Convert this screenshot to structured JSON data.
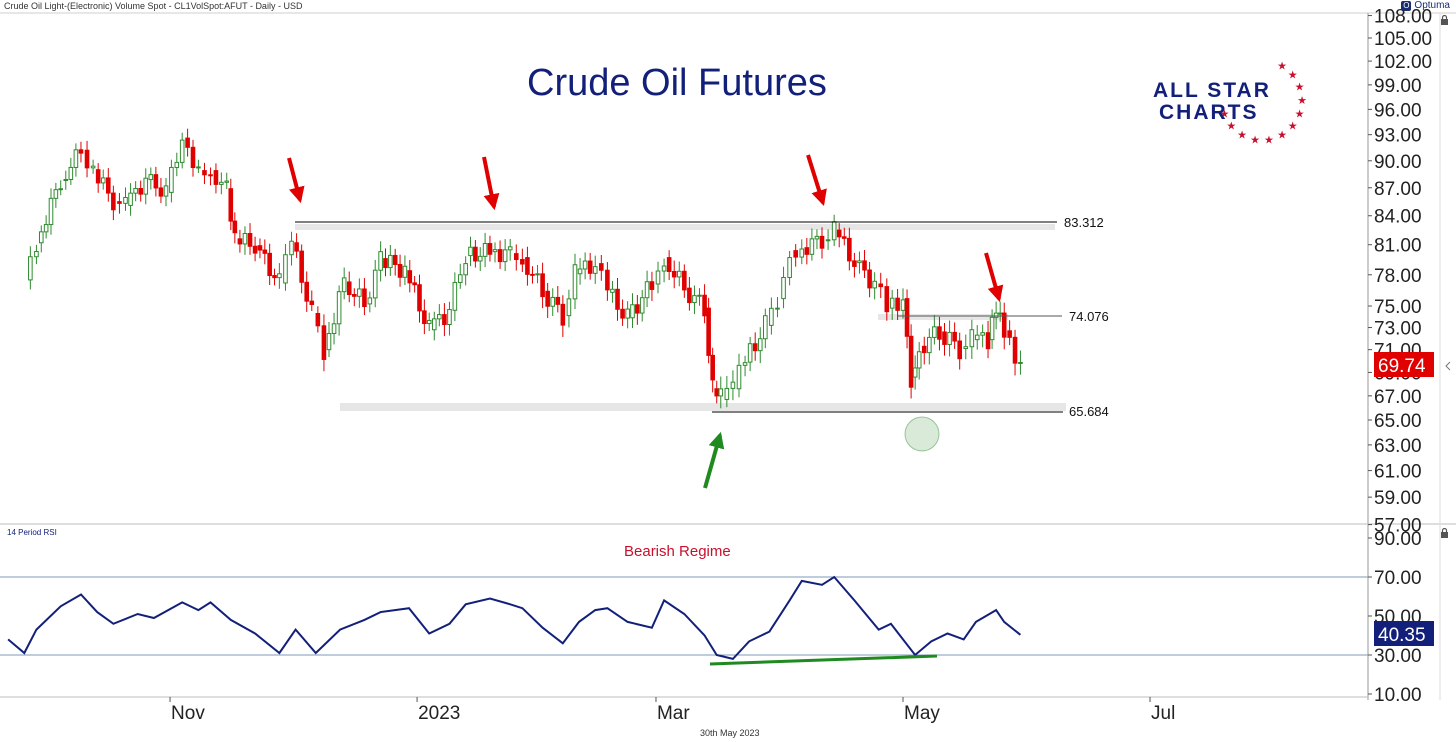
{
  "header": {
    "instrument": "Crude Oil Light-(Electronic) Volume Spot - CL1VolSpot:AFUT - Daily - USD",
    "brand": "Optuma"
  },
  "footer": {
    "date": "30th May 2023"
  },
  "logo": {
    "line1": "ALL STAR",
    "line2": "CHARTS",
    "star_color": "#c8102e"
  },
  "colors": {
    "up": "#2e8b2e",
    "down": "#e00000",
    "rsi_line": "#13207a",
    "arrow_red": "#e00000",
    "arrow_green": "#1f8a1f",
    "price_badge": "#e00000",
    "rsi_badge": "#13207a"
  },
  "chart_data": [
    {
      "type": "candlestick",
      "title": "Crude Oil Futures",
      "y_ticks": [
        "108.00",
        "105.00",
        "102.00",
        "99.00",
        "96.00",
        "93.00",
        "90.00",
        "87.00",
        "84.00",
        "81.00",
        "78.00",
        "75.00",
        "73.00",
        "71.00",
        "69.00",
        "67.00",
        "65.00",
        "63.00",
        "61.00",
        "59.00",
        "57.00"
      ],
      "y_scale": "log",
      "ylim": [
        57,
        108
      ],
      "x_ticks": [
        "Nov",
        "2023",
        "Mar",
        "May",
        "Jul"
      ],
      "last_price": "69.74",
      "levels": [
        {
          "label": "83.312",
          "value": 83.312
        },
        {
          "label": "74.076",
          "value": 74.076
        },
        {
          "label": "65.684",
          "value": 65.684
        }
      ],
      "approx_close_path": [
        [
          "2022-09-26",
          77.5
        ],
        [
          "2022-09-29",
          81.2
        ],
        [
          "2022-10-05",
          87.8
        ],
        [
          "2022-10-10",
          91.2
        ],
        [
          "2022-10-13",
          89.0
        ],
        [
          "2022-10-18",
          85.5
        ],
        [
          "2022-10-21",
          85.1
        ],
        [
          "2022-10-26",
          87.9
        ],
        [
          "2022-10-31",
          86.5
        ],
        [
          "2022-11-04",
          92.6
        ],
        [
          "2022-11-08",
          88.9
        ],
        [
          "2022-11-11",
          88.9
        ],
        [
          "2022-11-15",
          86.9
        ],
        [
          "2022-11-17",
          81.6
        ],
        [
          "2022-11-22",
          80.9
        ],
        [
          "2022-11-28",
          77.2
        ],
        [
          "2022-12-01",
          81.2
        ],
        [
          "2022-12-06",
          74.3
        ],
        [
          "2022-12-09",
          71.0
        ],
        [
          "2022-12-14",
          77.3
        ],
        [
          "2022-12-19",
          75.2
        ],
        [
          "2022-12-23",
          79.6
        ],
        [
          "2022-12-29",
          78.4
        ],
        [
          "2023-01-04",
          72.8
        ],
        [
          "2023-01-09",
          74.6
        ],
        [
          "2023-01-13",
          79.9
        ],
        [
          "2023-01-19",
          80.3
        ],
        [
          "2023-01-24",
          80.1
        ],
        [
          "2023-01-27",
          79.7
        ],
        [
          "2023-02-01",
          76.4
        ],
        [
          "2023-02-06",
          74.1
        ],
        [
          "2023-02-09",
          78.1
        ],
        [
          "2023-02-14",
          79.1
        ],
        [
          "2023-02-17",
          76.3
        ],
        [
          "2023-02-22",
          73.9
        ],
        [
          "2023-02-28",
          77.1
        ],
        [
          "2023-03-03",
          79.7
        ],
        [
          "2023-03-08",
          76.7
        ],
        [
          "2023-03-13",
          74.8
        ],
        [
          "2023-03-15",
          67.6
        ],
        [
          "2023-03-17",
          66.7
        ],
        [
          "2023-03-20",
          67.6
        ],
        [
          "2023-03-23",
          69.9
        ],
        [
          "2023-03-28",
          73.2
        ],
        [
          "2023-03-31",
          75.7
        ],
        [
          "2023-04-03",
          80.4
        ],
        [
          "2023-04-06",
          80.7
        ],
        [
          "2023-04-11",
          81.5
        ],
        [
          "2023-04-14",
          82.5
        ],
        [
          "2023-04-19",
          79.2
        ],
        [
          "2023-04-24",
          77.1
        ],
        [
          "2023-04-27",
          74.8
        ],
        [
          "2023-05-01",
          75.7
        ],
        [
          "2023-05-03",
          68.6
        ],
        [
          "2023-05-05",
          71.3
        ],
        [
          "2023-05-10",
          72.6
        ],
        [
          "2023-05-15",
          71.1
        ],
        [
          "2023-05-18",
          71.9
        ],
        [
          "2023-05-22",
          71.9
        ],
        [
          "2023-05-24",
          74.3
        ],
        [
          "2023-05-26",
          72.7
        ],
        [
          "2023-05-30",
          69.7
        ]
      ]
    },
    {
      "type": "line",
      "title": "14 Period RSI",
      "annotation": "Bearish Regime",
      "y_ticks": [
        "90.00",
        "70.00",
        "50.00",
        "30.00",
        "10.00"
      ],
      "ylim": [
        10,
        90
      ],
      "reference_lines": [
        70,
        30
      ],
      "last_value": "40.35",
      "approx_values": [
        [
          "2022-09-22",
          38
        ],
        [
          "2022-09-26",
          31
        ],
        [
          "2022-09-29",
          43
        ],
        [
          "2022-10-05",
          55
        ],
        [
          "2022-10-10",
          61
        ],
        [
          "2022-10-14",
          52
        ],
        [
          "2022-10-18",
          46
        ],
        [
          "2022-10-24",
          51
        ],
        [
          "2022-10-28",
          49
        ],
        [
          "2022-11-04",
          57
        ],
        [
          "2022-11-08",
          53
        ],
        [
          "2022-11-11",
          57
        ],
        [
          "2022-11-16",
          48
        ],
        [
          "2022-11-22",
          41
        ],
        [
          "2022-11-28",
          31
        ],
        [
          "2022-12-02",
          43
        ],
        [
          "2022-12-07",
          31
        ],
        [
          "2022-12-13",
          43
        ],
        [
          "2022-12-19",
          48
        ],
        [
          "2022-12-23",
          52
        ],
        [
          "2022-12-30",
          54
        ],
        [
          "2023-01-04",
          41
        ],
        [
          "2023-01-09",
          46
        ],
        [
          "2023-01-13",
          56
        ],
        [
          "2023-01-19",
          59
        ],
        [
          "2023-01-24",
          56
        ],
        [
          "2023-01-27",
          54
        ],
        [
          "2023-02-01",
          44
        ],
        [
          "2023-02-06",
          36
        ],
        [
          "2023-02-10",
          47
        ],
        [
          "2023-02-14",
          53
        ],
        [
          "2023-02-17",
          54
        ],
        [
          "2023-02-22",
          47
        ],
        [
          "2023-02-28",
          44
        ],
        [
          "2023-03-03",
          58
        ],
        [
          "2023-03-08",
          51
        ],
        [
          "2023-03-13",
          40
        ],
        [
          "2023-03-16",
          30
        ],
        [
          "2023-03-20",
          28
        ],
        [
          "2023-03-24",
          37
        ],
        [
          "2023-03-29",
          42
        ],
        [
          "2023-04-03",
          58
        ],
        [
          "2023-04-06",
          68
        ],
        [
          "2023-04-11",
          66
        ],
        [
          "2023-04-14",
          70
        ],
        [
          "2023-04-19",
          58
        ],
        [
          "2023-04-25",
          43
        ],
        [
          "2023-04-28",
          46
        ],
        [
          "2023-05-04",
          30
        ],
        [
          "2023-05-08",
          37
        ],
        [
          "2023-05-12",
          41
        ],
        [
          "2023-05-16",
          38
        ],
        [
          "2023-05-19",
          47
        ],
        [
          "2023-05-24",
          53
        ],
        [
          "2023-05-26",
          47
        ],
        [
          "2023-05-30",
          40.35
        ]
      ]
    }
  ]
}
